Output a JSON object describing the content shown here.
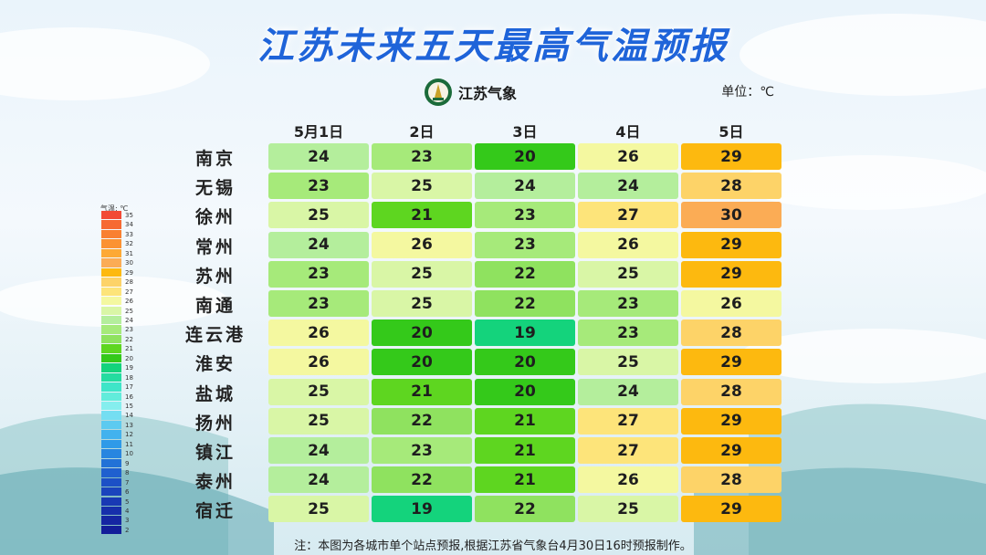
{
  "title": "江苏未来五天最高气温预报",
  "logo_text": "江苏气象",
  "unit": "单位：℃",
  "note": "注：本图为各城市单个站点预报,根据江苏省气象台4月30日16时预报制作。",
  "chart_data": {
    "type": "table",
    "columns": [
      "5月1日",
      "2日",
      "3日",
      "4日",
      "5日"
    ],
    "rows": [
      {
        "city": "南京",
        "values": [
          24,
          23,
          20,
          26,
          29
        ]
      },
      {
        "city": "无锡",
        "values": [
          23,
          25,
          24,
          24,
          28
        ]
      },
      {
        "city": "徐州",
        "values": [
          25,
          21,
          23,
          27,
          30
        ]
      },
      {
        "city": "常州",
        "values": [
          24,
          26,
          23,
          26,
          29
        ]
      },
      {
        "city": "苏州",
        "values": [
          23,
          25,
          22,
          25,
          29
        ]
      },
      {
        "city": "南通",
        "values": [
          23,
          25,
          22,
          23,
          26
        ]
      },
      {
        "city": "连云港",
        "values": [
          26,
          20,
          19,
          23,
          28
        ]
      },
      {
        "city": "淮安",
        "values": [
          26,
          20,
          20,
          25,
          29
        ]
      },
      {
        "city": "盐城",
        "values": [
          25,
          21,
          20,
          24,
          28
        ]
      },
      {
        "city": "扬州",
        "values": [
          25,
          22,
          21,
          27,
          29
        ]
      },
      {
        "city": "镇江",
        "values": [
          24,
          23,
          21,
          27,
          29
        ]
      },
      {
        "city": "泰州",
        "values": [
          24,
          22,
          21,
          26,
          28
        ]
      },
      {
        "city": "宿迁",
        "values": [
          25,
          19,
          22,
          25,
          29
        ]
      }
    ]
  },
  "legend": {
    "title": "气温: ℃",
    "levels": [
      "35",
      "34",
      "33",
      "32",
      "31",
      "30",
      "29",
      "28",
      "27",
      "26",
      "25",
      "24",
      "23",
      "22",
      "21",
      "20",
      "19",
      "18",
      "17",
      "16",
      "15",
      "14",
      "13",
      "12",
      "11",
      "10",
      "9",
      "8",
      "7",
      "6",
      "5",
      "4",
      "3",
      "2"
    ],
    "colors": {
      "35": "#f24a35",
      "34": "#f66a33",
      "33": "#f98031",
      "32": "#fb9232",
      "31": "#fda935",
      "30": "#fbac55",
      "29": "#fdb90f",
      "28": "#fdd368",
      "27": "#fde47a",
      "26": "#f4f8a0",
      "25": "#d9f6a6",
      "24": "#b4ee9c",
      "23": "#a6ea7a",
      "22": "#8fe25f",
      "21": "#5ed620",
      "20": "#34c91a",
      "19": "#14d37c",
      "18": "#24dca0",
      "17": "#3fe5c8",
      "16": "#62ecdb",
      "15": "#85eeee",
      "14": "#74def2",
      "13": "#5ccaf0",
      "12": "#42b2ee",
      "11": "#2f9ae8",
      "10": "#2886e0",
      "9": "#2272d7",
      "8": "#1f60cf",
      "7": "#1c50c6",
      "6": "#1a44bd",
      "5": "#1839b4",
      "4": "#162fab",
      "3": "#1526a2",
      "2": "#131e99"
    }
  }
}
